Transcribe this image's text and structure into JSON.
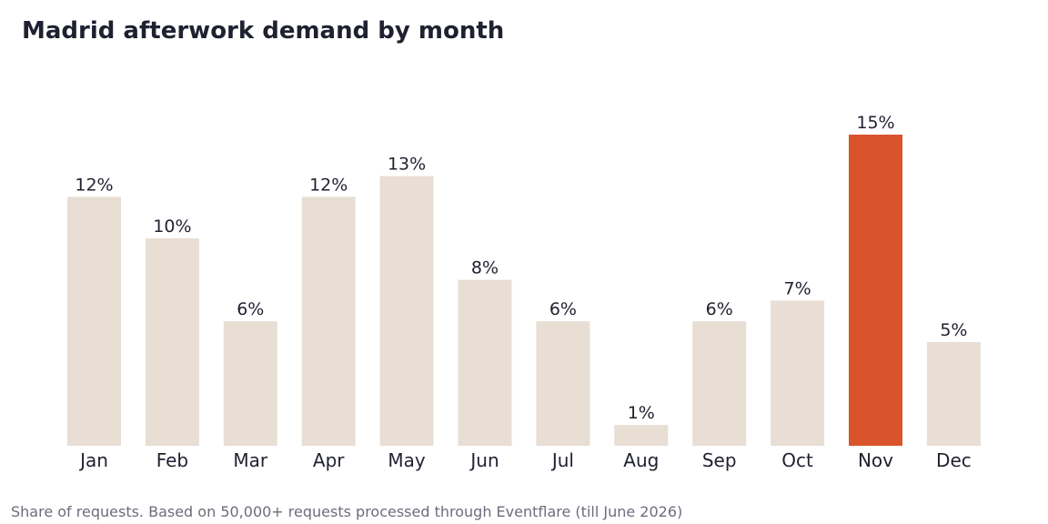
{
  "chart_data": {
    "type": "bar",
    "title": "Madrid afterwork demand by month",
    "footnote": "Share of requests. Based on 50,000+ requests processed through Eventflare (till June 2026)",
    "categories": [
      "Jan",
      "Feb",
      "Mar",
      "Apr",
      "May",
      "Jun",
      "Jul",
      "Aug",
      "Sep",
      "Oct",
      "Nov",
      "Dec"
    ],
    "values": [
      12,
      10,
      6,
      12,
      13,
      8,
      6,
      1,
      6,
      7,
      15,
      5
    ],
    "value_labels": [
      "12%",
      "10%",
      "6%",
      "12%",
      "13%",
      "8%",
      "6%",
      "1%",
      "6%",
      "7%",
      "15%",
      "5%"
    ],
    "highlight_index": 10,
    "ylim": [
      0,
      15
    ],
    "grid": false,
    "legend": "none",
    "colors": {
      "bar": "#e8ded4",
      "highlight": "#d9532b"
    }
  }
}
